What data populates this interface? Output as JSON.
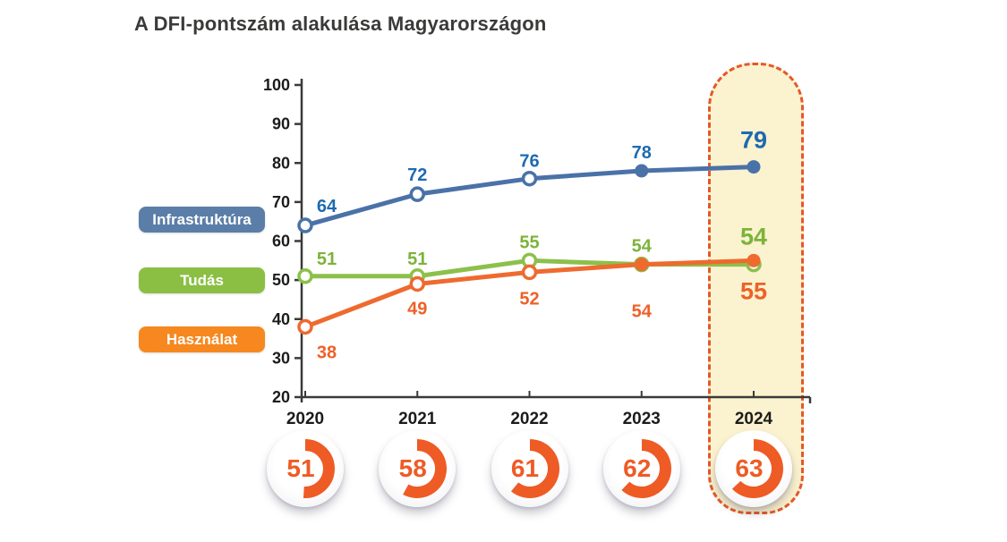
{
  "title": "A DFI-pontszám alakulása Magyarországon",
  "legend": {
    "position": "left",
    "items": [
      {
        "label": "Infrastruktúra",
        "color": "#5b7ea8"
      },
      {
        "label": "Tudás",
        "color": "#8bbf44"
      },
      {
        "label": "Használat",
        "color": "#f6881f"
      }
    ]
  },
  "highlight": {
    "year": "2024",
    "fill": "#fbf2cf",
    "border_color": "#e4582a"
  },
  "chart_data": {
    "type": "line",
    "x": [
      "2020",
      "2021",
      "2022",
      "2023",
      "2024"
    ],
    "series": [
      {
        "name": "Infrastruktúra",
        "values": [
          64,
          72,
          76,
          78,
          79
        ],
        "color": "#4a72a8",
        "label_color": "#1e6ab0",
        "label_position": "above",
        "marker_filled": [
          false,
          false,
          false,
          true,
          true
        ],
        "label_dx": [
          24,
          0,
          0,
          0,
          0
        ],
        "label_dy": [
          -22,
          -22,
          -20,
          -21,
          -30
        ]
      },
      {
        "name": "Tudás",
        "values": [
          51,
          51,
          55,
          54,
          54
        ],
        "color": "#8cc04b",
        "label_color": "#7cb33a",
        "label_position": "above",
        "marker_filled": [
          false,
          false,
          false,
          false,
          false
        ],
        "label_dx": [
          24,
          0,
          0,
          0,
          0
        ],
        "label_dy": [
          -20,
          -20,
          -21,
          -21,
          -31
        ]
      },
      {
        "name": "Használat",
        "values": [
          38,
          49,
          52,
          54,
          55
        ],
        "color": "#ee6a2f",
        "label_color": "#ed6127",
        "label_position": "below",
        "marker_filled": [
          false,
          false,
          false,
          true,
          true
        ],
        "label_dx": [
          24,
          0,
          0,
          0,
          0
        ],
        "label_dy": [
          28,
          27,
          29,
          52,
          34
        ]
      }
    ],
    "ylim": [
      20,
      100
    ],
    "yticks": [
      100,
      90,
      80,
      70,
      60,
      50,
      40,
      30,
      20
    ],
    "grid": false,
    "legend_position": "left",
    "emphasize_last_point": true,
    "axis_color": "#3a3a39",
    "tick_text_color": "#1c1c1b",
    "badges": {
      "type": "donut",
      "color": "#ee5b25",
      "values": [
        51,
        58,
        61,
        62,
        63
      ]
    }
  }
}
